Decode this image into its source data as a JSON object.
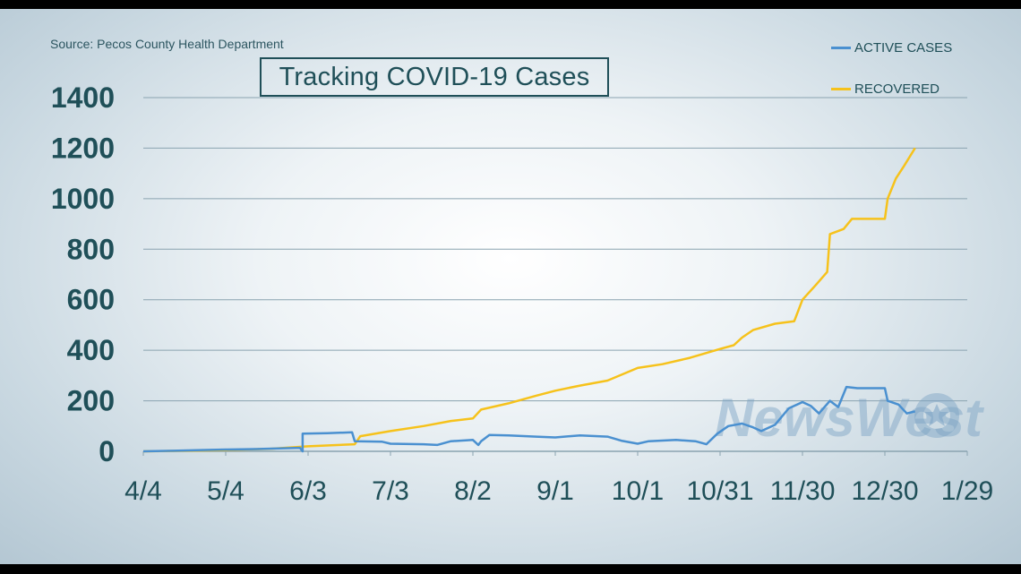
{
  "source": "Source: Pecos County Health Department",
  "title": "Tracking COVID-19 Cases",
  "watermark": "NewsWest",
  "watermark_icon": "texas-star-9-icon",
  "colors": {
    "active": "#4a90d0",
    "recovered": "#f6c21b",
    "text": "#1f4f58",
    "grid": "#8aa3b0"
  },
  "chart_data": {
    "type": "line",
    "title": "Tracking COVID-19 Cases",
    "xlabel": "",
    "ylabel": "",
    "x_ticks": [
      "4/4",
      "5/4",
      "6/3",
      "7/3",
      "8/2",
      "9/1",
      "10/1",
      "10/31",
      "11/30",
      "12/30",
      "1/29"
    ],
    "ylim": [
      0,
      1400
    ],
    "y_ticks": [
      0,
      200,
      400,
      600,
      800,
      1000,
      1200,
      1400
    ],
    "grid": true,
    "legend_position": "top-right",
    "series": [
      {
        "name": "ACTIVE CASES",
        "color": "#4a90d0",
        "points": [
          [
            "4/4",
            0
          ],
          [
            "4/15",
            2
          ],
          [
            "4/25",
            5
          ],
          [
            "5/4",
            7
          ],
          [
            "5/15",
            9
          ],
          [
            "5/25",
            12
          ],
          [
            "5/31",
            14
          ],
          [
            "6/1",
            0
          ],
          [
            "6/1",
            70
          ],
          [
            "6/10",
            72
          ],
          [
            "6/19",
            75
          ],
          [
            "6/20",
            40
          ],
          [
            "6/30",
            38
          ],
          [
            "7/3",
            30
          ],
          [
            "7/15",
            28
          ],
          [
            "7/20",
            25
          ],
          [
            "7/25",
            40
          ],
          [
            "8/2",
            45
          ],
          [
            "8/4",
            25
          ],
          [
            "8/5",
            40
          ],
          [
            "8/8",
            65
          ],
          [
            "8/15",
            63
          ],
          [
            "8/25",
            58
          ],
          [
            "9/1",
            55
          ],
          [
            "9/10",
            63
          ],
          [
            "9/20",
            58
          ],
          [
            "9/25",
            42
          ],
          [
            "10/1",
            30
          ],
          [
            "10/5",
            40
          ],
          [
            "10/15",
            45
          ],
          [
            "10/22",
            40
          ],
          [
            "10/26",
            28
          ],
          [
            "10/30",
            70
          ],
          [
            "11/3",
            100
          ],
          [
            "11/8",
            110
          ],
          [
            "11/12",
            95
          ],
          [
            "11/15",
            80
          ],
          [
            "11/20",
            105
          ],
          [
            "11/25",
            170
          ],
          [
            "11/30",
            195
          ],
          [
            "12/3",
            180
          ],
          [
            "12/6",
            150
          ],
          [
            "12/10",
            200
          ],
          [
            "12/13",
            175
          ],
          [
            "12/16",
            255
          ],
          [
            "12/20",
            250
          ],
          [
            "12/30",
            250
          ],
          [
            "12/31",
            200
          ],
          [
            "1/4",
            185
          ],
          [
            "1/7",
            150
          ],
          [
            "1/10",
            158
          ]
        ]
      },
      {
        "name": "RECOVERED",
        "color": "#f6c21b",
        "points": [
          [
            "4/4",
            0
          ],
          [
            "4/20",
            2
          ],
          [
            "5/4",
            5
          ],
          [
            "5/20",
            10
          ],
          [
            "6/3",
            20
          ],
          [
            "6/20",
            28
          ],
          [
            "6/22",
            60
          ],
          [
            "7/3",
            80
          ],
          [
            "7/15",
            100
          ],
          [
            "7/25",
            120
          ],
          [
            "8/2",
            130
          ],
          [
            "8/5",
            165
          ],
          [
            "8/15",
            190
          ],
          [
            "8/25",
            220
          ],
          [
            "9/1",
            240
          ],
          [
            "9/10",
            260
          ],
          [
            "9/20",
            280
          ],
          [
            "10/1",
            330
          ],
          [
            "10/10",
            345
          ],
          [
            "10/20",
            370
          ],
          [
            "10/31",
            405
          ],
          [
            "11/5",
            420
          ],
          [
            "11/8",
            450
          ],
          [
            "11/12",
            480
          ],
          [
            "11/20",
            505
          ],
          [
            "11/27",
            515
          ],
          [
            "11/30",
            600
          ],
          [
            "12/5",
            660
          ],
          [
            "12/9",
            710
          ],
          [
            "12/10",
            860
          ],
          [
            "12/15",
            880
          ],
          [
            "12/18",
            920
          ],
          [
            "12/30",
            920
          ],
          [
            "12/31",
            1000
          ],
          [
            "1/3",
            1080
          ],
          [
            "1/6",
            1130
          ],
          [
            "1/10",
            1200
          ]
        ]
      }
    ]
  }
}
